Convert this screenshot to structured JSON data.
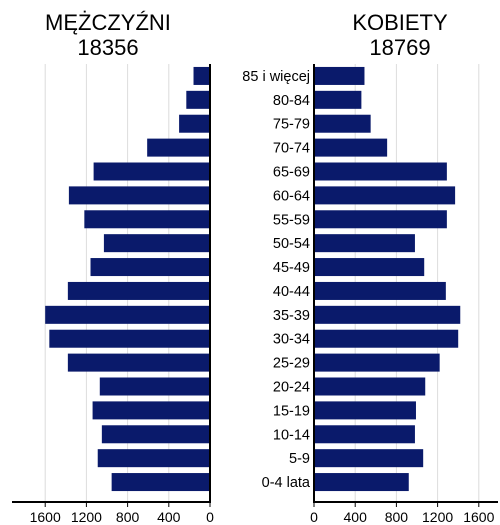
{
  "chart_data": {
    "type": "bar",
    "orientation": "horizontal-pyramid",
    "categories": [
      "0-4 lata",
      "5-9",
      "10-14",
      "15-19",
      "20-24",
      "25-29",
      "30-34",
      "35-39",
      "40-44",
      "45-49",
      "50-54",
      "55-59",
      "60-64",
      "65-69",
      "70-74",
      "75-79",
      "80-84",
      "85 i więcej"
    ],
    "series": [
      {
        "name": "MĘŻCZYŹNI",
        "total": "18356",
        "values": [
          955,
          1090,
          1050,
          1140,
          1070,
          1380,
          1560,
          1600,
          1380,
          1160,
          1030,
          1220,
          1370,
          1130,
          610,
          300,
          230,
          160
        ],
        "color": "#0a1a6b"
      },
      {
        "name": "KOBIETY",
        "total": "18769",
        "values": [
          920,
          1060,
          980,
          990,
          1080,
          1220,
          1400,
          1420,
          1280,
          1070,
          980,
          1290,
          1370,
          1290,
          710,
          550,
          460,
          490
        ],
        "color": "#0a1a6b"
      }
    ],
    "xlim": [
      0,
      1800
    ],
    "left_ticks": [
      "1600",
      "1200",
      "800",
      "400",
      "0"
    ],
    "right_ticks": [
      "0",
      "400",
      "800",
      "1200",
      "1600"
    ],
    "grid": "vertical"
  }
}
